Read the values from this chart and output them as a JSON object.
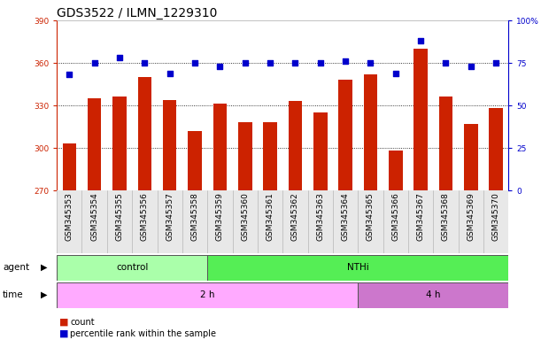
{
  "title": "GDS3522 / ILMN_1229310",
  "samples": [
    "GSM345353",
    "GSM345354",
    "GSM345355",
    "GSM345356",
    "GSM345357",
    "GSM345358",
    "GSM345359",
    "GSM345360",
    "GSM345361",
    "GSM345362",
    "GSM345363",
    "GSM345364",
    "GSM345365",
    "GSM345366",
    "GSM345367",
    "GSM345368",
    "GSM345369",
    "GSM345370"
  ],
  "counts": [
    303,
    335,
    336,
    350,
    334,
    312,
    331,
    318,
    318,
    333,
    325,
    348,
    352,
    298,
    370,
    336,
    317,
    328
  ],
  "percentile_ranks": [
    68,
    75,
    78,
    75,
    69,
    75,
    73,
    75,
    75,
    75,
    75,
    76,
    75,
    69,
    88,
    75,
    73,
    75
  ],
  "ylim_left": [
    270,
    390
  ],
  "ylim_right": [
    0,
    100
  ],
  "yticks_left": [
    270,
    300,
    330,
    360,
    390
  ],
  "yticks_right": [
    0,
    25,
    50,
    75,
    100
  ],
  "bar_color": "#cc2200",
  "dot_color": "#0000cc",
  "axis_color_left": "#cc2200",
  "axis_color_right": "#0000cc",
  "plot_bg_color": "#ffffff",
  "title_fontsize": 10,
  "tick_fontsize": 6.5,
  "label_fontsize": 7.5,
  "agent_label_color": "#000000",
  "control_color": "#aaffaa",
  "nthi_color": "#55ee55",
  "time2h_color": "#ffaaff",
  "time4h_color": "#cc77cc"
}
